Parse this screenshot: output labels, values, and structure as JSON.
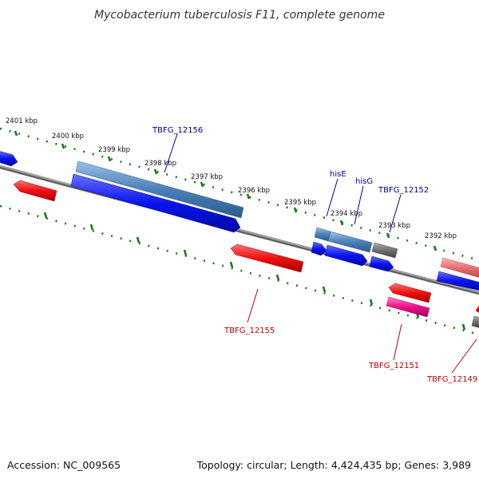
{
  "title": "Mycobacterium tuberculosis F11, complete genome",
  "footer": {
    "accession": "Accession: NC_009565",
    "summary": "Topology: circular; Length: 4,424,435 bp; Genes: 3,989"
  },
  "ticks": [
    "2401 kbp",
    "2400 kbp",
    "2399 kbp",
    "2398 kbp",
    "2397 kbp",
    "2396 kbp",
    "2395 kbp",
    "2394 kbp",
    "2393 kbp",
    "2392 kbp"
  ],
  "gene_labels": {
    "TBFG_12156": "TBFG_12156",
    "hisE": "hisE",
    "hisG": "hisG",
    "TBFG_12152": "TBFG_12152",
    "TBFG_12155": "TBFG_12155",
    "TBFG_12151": "TBFG_12151",
    "TBFG_12149": "TBFG_12149"
  },
  "colors": {
    "forward_cds": "#0a14ee",
    "reverse_cds": "#ee1010",
    "steelblue_gene": "#4a80b8",
    "salmon_gene": "#e87070",
    "magenta_gene": "#ee1088",
    "gray_gene": "#6e6e6e",
    "backbone": "#808080",
    "tick_marks": "#1a7a1a",
    "forward_label": "#000088",
    "reverse_label": "#bb0000"
  }
}
